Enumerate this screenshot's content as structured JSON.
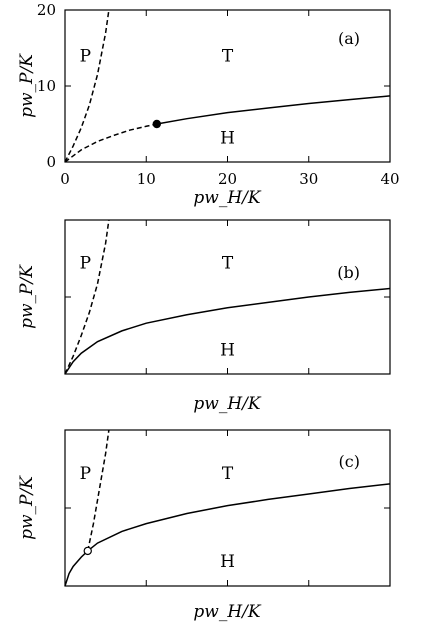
{
  "figure": {
    "background": "#ffffff",
    "ink": "#000000"
  },
  "chart_data": [
    {
      "type": "line",
      "panel": "a",
      "tag": "(a)",
      "xlabel": "pw_H/K",
      "ylabel": "pw_P/K",
      "xlim": [
        0,
        40
      ],
      "ylim": [
        0,
        20
      ],
      "xticks": [
        0,
        10,
        20,
        30,
        40
      ],
      "yticks": [
        0,
        10,
        20
      ],
      "xtick_labels": [
        "0",
        "10",
        "20",
        "30",
        "40"
      ],
      "ytick_labels": [
        "0",
        "10",
        "20"
      ],
      "regions": [
        {
          "label": "P",
          "x": 2.5,
          "y": 14
        },
        {
          "label": "T",
          "x": 20,
          "y": 14
        },
        {
          "label": "H",
          "x": 20,
          "y": 3.2
        }
      ],
      "series": [
        {
          "style": "dashed",
          "x": [
            0,
            1,
            2,
            3,
            4,
            5,
            5.4
          ],
          "y": [
            0,
            2.1,
            4.5,
            7.5,
            11.5,
            17,
            20
          ]
        },
        {
          "style": "dashed",
          "x": [
            0,
            2,
            4,
            6,
            8,
            10,
            11.3
          ],
          "y": [
            0,
            1.6,
            2.7,
            3.5,
            4.2,
            4.7,
            5
          ]
        },
        {
          "style": "solid",
          "x": [
            11.3,
            15,
            20,
            25,
            30,
            35,
            40
          ],
          "y": [
            5,
            5.7,
            6.5,
            7.1,
            7.7,
            8.2,
            8.7
          ]
        }
      ],
      "markers": [
        {
          "x": 11.3,
          "y": 5,
          "fill": "filled"
        }
      ]
    },
    {
      "type": "line",
      "panel": "b",
      "tag": "(b)",
      "xlabel": "pw_H/K",
      "ylabel": "pw_P/K",
      "xlim": [
        0,
        40
      ],
      "ylim": [
        0,
        20
      ],
      "xticks": [
        0,
        10,
        20,
        30,
        40
      ],
      "yticks": [
        0,
        10,
        20
      ],
      "regions": [
        {
          "label": "P",
          "x": 2.5,
          "y": 14.5
        },
        {
          "label": "T",
          "x": 20,
          "y": 14.5
        },
        {
          "label": "H",
          "x": 20,
          "y": 3.2
        }
      ],
      "series": [
        {
          "style": "dashed",
          "x": [
            0,
            1,
            2,
            3,
            4,
            5,
            5.4
          ],
          "y": [
            0,
            2.3,
            5,
            8,
            11.7,
            17,
            20
          ]
        },
        {
          "style": "solid",
          "x": [
            0,
            1,
            2,
            4,
            7,
            10,
            15,
            20,
            25,
            30,
            35,
            40
          ],
          "y": [
            0,
            1.6,
            2.7,
            4.2,
            5.6,
            6.6,
            7.7,
            8.6,
            9.3,
            10,
            10.6,
            11.1
          ]
        }
      ],
      "markers": []
    },
    {
      "type": "line",
      "panel": "c",
      "tag": "(c)",
      "xlabel": "pw_H/K",
      "ylabel": "pw_P/K",
      "xlim": [
        0,
        40
      ],
      "ylim": [
        0,
        20
      ],
      "xticks": [
        0,
        10,
        20,
        30,
        40
      ],
      "yticks": [
        0,
        10,
        20
      ],
      "regions": [
        {
          "label": "P",
          "x": 2.5,
          "y": 14.5
        },
        {
          "label": "T",
          "x": 20,
          "y": 14.5
        },
        {
          "label": "H",
          "x": 20,
          "y": 3.2
        }
      ],
      "series": [
        {
          "style": "dashed",
          "x": [
            2.8,
            3.5,
            4,
            4.5,
            5,
            5.4
          ],
          "y": [
            4.5,
            8,
            11,
            14,
            17,
            20
          ]
        },
        {
          "style": "solid",
          "x": [
            0,
            0.5,
            1,
            2,
            2.8,
            4,
            7,
            10,
            15,
            20,
            25,
            30,
            35,
            40
          ],
          "y": [
            0,
            1.6,
            2.5,
            3.7,
            4.5,
            5.5,
            7,
            8,
            9.3,
            10.3,
            11.1,
            11.8,
            12.5,
            13.1
          ]
        }
      ],
      "markers": [
        {
          "x": 2.8,
          "y": 4.5,
          "fill": "open"
        }
      ]
    }
  ]
}
